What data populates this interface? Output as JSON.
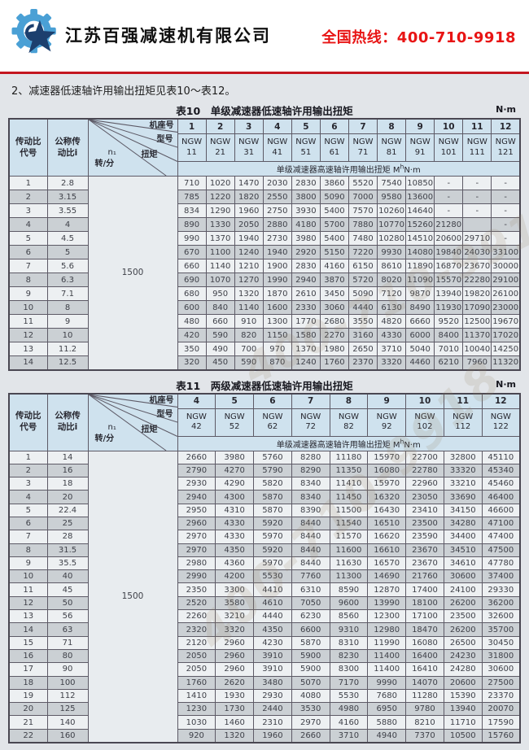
{
  "header": {
    "company": "江苏百强减速机有限公司",
    "hotline": "全国热线：400-710-9918",
    "logo": "gear-star-logo"
  },
  "intro": "2、减速器低速轴许用输出扭矩见表10～表12。",
  "watermark": "400-710-9918",
  "colors": {
    "accent_red": "#c41620",
    "hotline_red": "#e81414",
    "header_blue": "#cfe2ee",
    "row_light": "#edf0f2",
    "row_dark": "#cbd0d4",
    "border": "#5d5a66"
  },
  "corner": {
    "frame": "机座号",
    "model": "型号",
    "torque": "扭矩",
    "speed_sym": "n₁",
    "speed_unit": "转/分"
  },
  "left_headers": {
    "code": "传动比\n代号",
    "ratio": "公称传\n动比i"
  },
  "subheader": {
    "prefix": "单级减速器高速轴许用输出扭矩 M",
    "sub": "h",
    "suffix": "N·m"
  },
  "speed_value": "1500",
  "table10": {
    "caption": "表10　单级减速器低速轴许用输出扭矩",
    "unit": "N·m",
    "frames": [
      "1",
      "2",
      "3",
      "4",
      "5",
      "6",
      "7",
      "8",
      "9",
      "10",
      "11",
      "12"
    ],
    "models": [
      "NGW\n11",
      "NGW\n21",
      "NGW\n31",
      "NGW\n41",
      "NGW\n51",
      "NGW\n61",
      "NGW\n71",
      "NGW\n81",
      "NGW\n91",
      "NGW\n101",
      "NGW\n111",
      "NGW\n121"
    ],
    "rows": [
      {
        "code": "1",
        "ratio": "2.8",
        "values": [
          "710",
          "1020",
          "1470",
          "2030",
          "2830",
          "3860",
          "5520",
          "7540",
          "10850",
          "-",
          "-",
          "-"
        ]
      },
      {
        "code": "2",
        "ratio": "3.15",
        "values": [
          "785",
          "1220",
          "1820",
          "2550",
          "3800",
          "5090",
          "7000",
          "9580",
          "13600",
          "-",
          "-",
          "-"
        ]
      },
      {
        "code": "3",
        "ratio": "3.55",
        "values": [
          "834",
          "1290",
          "1960",
          "2750",
          "3930",
          "5400",
          "7570",
          "10260",
          "14640",
          "-",
          "-",
          "-"
        ]
      },
      {
        "code": "4",
        "ratio": "4",
        "values": [
          "890",
          "1330",
          "2050",
          "2880",
          "4180",
          "5700",
          "7880",
          "10770",
          "15260",
          "21280",
          "",
          "-"
        ]
      },
      {
        "code": "5",
        "ratio": "4.5",
        "values": [
          "990",
          "1370",
          "1940",
          "2730",
          "3980",
          "5400",
          "7480",
          "10280",
          "14510",
          "20600",
          "29710",
          "-"
        ]
      },
      {
        "code": "6",
        "ratio": "5",
        "values": [
          "670",
          "1100",
          "1240",
          "1940",
          "2920",
          "5150",
          "7220",
          "9930",
          "14080",
          "19840",
          "24030",
          "33100"
        ]
      },
      {
        "code": "7",
        "ratio": "5.6",
        "values": [
          "660",
          "1140",
          "1210",
          "1900",
          "2830",
          "4160",
          "6150",
          "8610",
          "11890",
          "16870",
          "23670",
          "30000"
        ]
      },
      {
        "code": "8",
        "ratio": "6.3",
        "values": [
          "690",
          "1070",
          "1270",
          "1990",
          "2940",
          "3870",
          "5720",
          "8020",
          "11090",
          "15570",
          "22280",
          "29100"
        ]
      },
      {
        "code": "9",
        "ratio": "7.1",
        "values": [
          "680",
          "950",
          "1320",
          "1870",
          "2610",
          "3450",
          "5090",
          "7120",
          "9870",
          "13940",
          "19820",
          "26100"
        ]
      },
      {
        "code": "10",
        "ratio": "8",
        "values": [
          "600",
          "840",
          "1140",
          "1600",
          "2330",
          "3060",
          "4440",
          "6130",
          "8490",
          "11930",
          "17090",
          "23000"
        ]
      },
      {
        "code": "11",
        "ratio": "9",
        "values": [
          "480",
          "660",
          "910",
          "1300",
          "1770",
          "2680",
          "3550",
          "4820",
          "6660",
          "9520",
          "12500",
          "19670"
        ]
      },
      {
        "code": "12",
        "ratio": "10",
        "values": [
          "420",
          "590",
          "820",
          "1150",
          "1580",
          "2270",
          "3160",
          "4330",
          "6000",
          "8400",
          "11370",
          "17020"
        ]
      },
      {
        "code": "13",
        "ratio": "11.2",
        "values": [
          "350",
          "490",
          "700",
          "970",
          "1370",
          "1980",
          "2650",
          "3710",
          "5040",
          "7010",
          "10040",
          "14250"
        ]
      },
      {
        "code": "14",
        "ratio": "12.5",
        "values": [
          "320",
          "450",
          "590",
          "870",
          "1240",
          "1760",
          "2370",
          "3320",
          "4460",
          "6210",
          "7960",
          "11320"
        ]
      }
    ]
  },
  "table11": {
    "caption": "表11　两级减速器低速轴许用输出扭矩",
    "unit": "N·m",
    "frames": [
      "4",
      "5",
      "6",
      "7",
      "8",
      "9",
      "10",
      "11",
      "12"
    ],
    "models": [
      "NGW\n42",
      "NGW\n52",
      "NGW\n62",
      "NGW\n72",
      "NGW\n82",
      "NGW\n92",
      "NGW\n102",
      "NGW\n112",
      "NGW\n122"
    ],
    "rows": [
      {
        "code": "1",
        "ratio": "14",
        "values": [
          "2660",
          "3980",
          "5760",
          "8280",
          "11180",
          "15970",
          "22700",
          "32800",
          "45110"
        ]
      },
      {
        "code": "2",
        "ratio": "16",
        "values": [
          "2790",
          "4270",
          "5790",
          "8290",
          "11350",
          "16080",
          "22780",
          "33320",
          "45340"
        ]
      },
      {
        "code": "3",
        "ratio": "18",
        "values": [
          "2930",
          "4290",
          "5820",
          "8340",
          "11410",
          "15970",
          "22960",
          "33210",
          "45460"
        ]
      },
      {
        "code": "4",
        "ratio": "20",
        "values": [
          "2940",
          "4300",
          "5870",
          "8340",
          "11450",
          "16320",
          "23050",
          "33690",
          "46400"
        ]
      },
      {
        "code": "5",
        "ratio": "22.4",
        "values": [
          "2950",
          "4310",
          "5870",
          "8390",
          "11500",
          "16430",
          "23410",
          "34150",
          "46600"
        ]
      },
      {
        "code": "6",
        "ratio": "25",
        "values": [
          "2960",
          "4330",
          "5920",
          "8440",
          "11540",
          "16510",
          "23500",
          "34280",
          "47100"
        ]
      },
      {
        "code": "7",
        "ratio": "28",
        "values": [
          "2970",
          "4330",
          "5970",
          "8440",
          "11570",
          "16620",
          "23590",
          "34400",
          "47400"
        ]
      },
      {
        "code": "8",
        "ratio": "31.5",
        "values": [
          "2970",
          "4350",
          "5920",
          "8440",
          "11600",
          "16610",
          "23670",
          "34510",
          "47500"
        ]
      },
      {
        "code": "9",
        "ratio": "35.5",
        "values": [
          "2980",
          "4360",
          "5970",
          "8440",
          "11630",
          "16570",
          "23670",
          "34610",
          "47780"
        ]
      },
      {
        "code": "10",
        "ratio": "40",
        "values": [
          "2990",
          "4200",
          "5530",
          "7760",
          "11300",
          "14690",
          "21760",
          "30600",
          "37400"
        ]
      },
      {
        "code": "11",
        "ratio": "45",
        "values": [
          "2350",
          "3300",
          "4410",
          "6310",
          "8590",
          "12870",
          "17400",
          "24100",
          "29330"
        ]
      },
      {
        "code": "12",
        "ratio": "50",
        "values": [
          "2520",
          "3580",
          "4610",
          "7050",
          "9600",
          "13990",
          "18100",
          "26200",
          "36200"
        ]
      },
      {
        "code": "13",
        "ratio": "56",
        "values": [
          "2260",
          "3210",
          "4440",
          "6230",
          "8560",
          "12300",
          "17100",
          "23500",
          "32600"
        ]
      },
      {
        "code": "14",
        "ratio": "63",
        "values": [
          "2320",
          "3320",
          "4350",
          "6600",
          "9310",
          "12980",
          "18470",
          "26200",
          "35700"
        ]
      },
      {
        "code": "15",
        "ratio": "71",
        "values": [
          "2120",
          "2960",
          "4230",
          "5870",
          "8310",
          "11990",
          "16080",
          "26500",
          "30450"
        ]
      },
      {
        "code": "16",
        "ratio": "80",
        "values": [
          "2050",
          "2960",
          "3910",
          "5900",
          "8230",
          "11400",
          "16400",
          "24230",
          "31800"
        ]
      },
      {
        "code": "17",
        "ratio": "90",
        "values": [
          "2050",
          "2960",
          "3910",
          "5900",
          "8300",
          "11400",
          "16410",
          "24280",
          "30600"
        ]
      },
      {
        "code": "18",
        "ratio": "100",
        "values": [
          "1760",
          "2620",
          "3480",
          "5070",
          "7170",
          "9990",
          "14070",
          "20600",
          "27500"
        ]
      },
      {
        "code": "19",
        "ratio": "112",
        "values": [
          "1410",
          "1930",
          "2930",
          "4080",
          "5530",
          "7680",
          "11280",
          "15390",
          "23370"
        ]
      },
      {
        "code": "20",
        "ratio": "125",
        "values": [
          "1230",
          "1730",
          "2440",
          "3530",
          "4980",
          "6950",
          "9780",
          "13940",
          "20070"
        ]
      },
      {
        "code": "21",
        "ratio": "140",
        "values": [
          "1030",
          "1460",
          "2310",
          "2970",
          "4160",
          "5880",
          "8210",
          "11710",
          "17590"
        ]
      },
      {
        "code": "22",
        "ratio": "160",
        "values": [
          "920",
          "1320",
          "1960",
          "2660",
          "3710",
          "4940",
          "7370",
          "10500",
          "15760"
        ]
      }
    ]
  }
}
